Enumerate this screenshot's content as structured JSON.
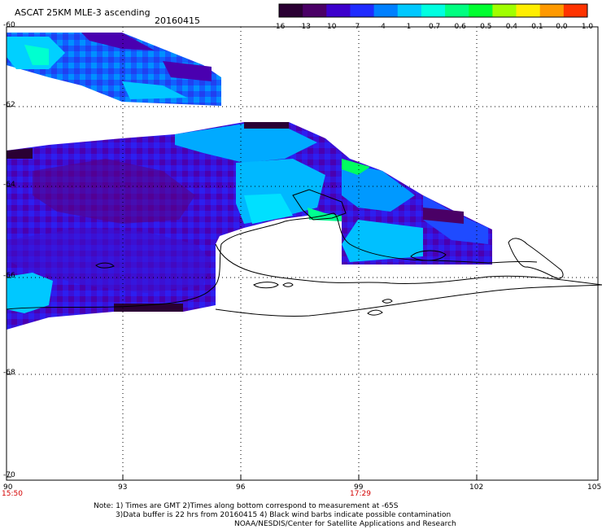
{
  "header": {
    "title": "ASCAT 25KM MLE-3 ascending",
    "date": "20160415"
  },
  "colorbar": {
    "ticks": [
      "-16",
      "-13",
      "-10",
      "-7",
      "-4",
      "-1",
      "-0.7",
      "-0.6",
      "-0.5",
      "-0.4",
      "-0.1",
      "0.0",
      "1.0"
    ],
    "colors": [
      "#2a0033",
      "#4a0066",
      "#3c00cc",
      "#1f2bff",
      "#0080ff",
      "#00c8ff",
      "#00ffe0",
      "#00ff80",
      "#00ff30",
      "#a0ff00",
      "#ffee00",
      "#ff9900",
      "#ff3300"
    ]
  },
  "axes": {
    "lat_labels": [
      "-60",
      "-62",
      "-64",
      "-66",
      "-68",
      "-70"
    ],
    "lon_labels": [
      "90",
      "93",
      "96",
      "99",
      "102",
      "105"
    ],
    "time_start": "15:50",
    "time_mid": "17:29"
  },
  "notes": {
    "line1": "Note: 1) Times are GMT 2)Times along bottom correspond to measurement at -65S",
    "line2": "3)Data buffer is 22 hrs from 20160415 4) Black wind barbs indicate possible contamination",
    "line3": "NOAA/NESDIS/Center for Satellite Applications and Research"
  }
}
